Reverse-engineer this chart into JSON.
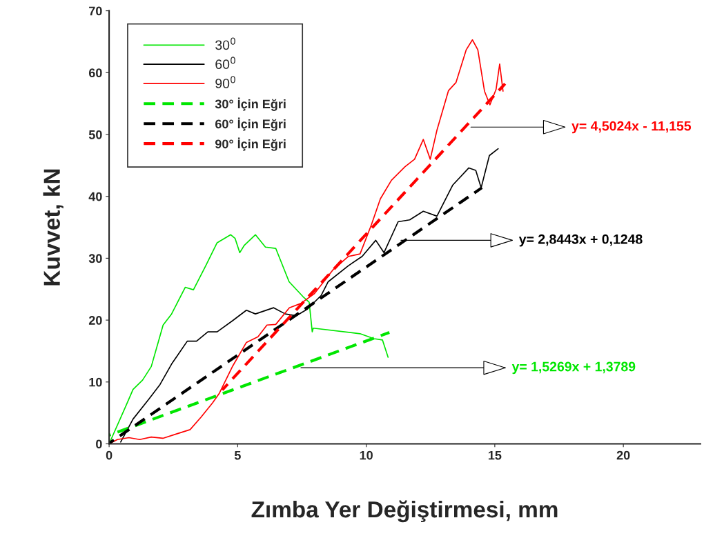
{
  "chart_data": {
    "type": "line",
    "xlabel": "Zımba Yer Değiştirmesi, mm",
    "ylabel": "Kuvvet, kN",
    "xlim": [
      0,
      23
    ],
    "ylim": [
      0,
      70
    ],
    "xticks": [
      0,
      5,
      10,
      15,
      20
    ],
    "yticks": [
      0,
      10,
      20,
      30,
      40,
      50,
      60,
      70
    ],
    "grid": false,
    "legend": "top left",
    "marker": "none",
    "series": [
      {
        "name": "30$^{0}$",
        "color": "#00e600",
        "line_style": "solid",
        "x": [
          0,
          0.66,
          0.93,
          1.3,
          1.64,
          2.1,
          2.43,
          2.96,
          3.28,
          3.76,
          4.2,
          4.73,
          4.9,
          5.08,
          5.26,
          5.69,
          6.08,
          6.48,
          7.0,
          7.54,
          7.78,
          7.9,
          7.94,
          9.76,
          10.3,
          10.63,
          10.85
        ],
        "values": [
          0,
          6.2,
          8.8,
          10.3,
          12.5,
          19.2,
          21,
          25.3,
          24.9,
          28.8,
          32.5,
          33.8,
          33.2,
          30.9,
          32.1,
          33.8,
          31.8,
          31.6,
          26.2,
          23.8,
          22.9,
          18.1,
          18.7,
          17.8,
          17.0,
          16.8,
          14.0
        ]
      },
      {
        "name": "60$^{0}$",
        "color": "#000000",
        "line_style": "solid",
        "x": [
          0.45,
          0.93,
          1.56,
          1.98,
          2.43,
          3.04,
          3.4,
          3.84,
          4.2,
          4.8,
          5.34,
          5.69,
          6.4,
          6.85,
          7.28,
          7.72,
          8.25,
          8.52,
          9.31,
          9.84,
          10.37,
          10.69,
          11.24,
          11.69,
          12.22,
          12.75,
          13.36,
          13.99,
          14.26,
          14.47,
          14.79,
          15.13
        ],
        "values": [
          0.3,
          4.0,
          7.3,
          9.6,
          12.9,
          16.6,
          16.6,
          18.1,
          18.1,
          19.9,
          21.6,
          21.0,
          22,
          21.0,
          20.7,
          21.8,
          24.0,
          26.2,
          28.8,
          30.3,
          32.9,
          30.9,
          35.9,
          36.2,
          37.6,
          36.8,
          41.8,
          44.6,
          44.2,
          41.4,
          46.6,
          47.7
        ]
      },
      {
        "name": "90$^{0}$",
        "color": "#ff0000",
        "line_style": "solid",
        "x": [
          0,
          0.32,
          0.77,
          1.19,
          1.64,
          2.09,
          2.62,
          3.15,
          3.57,
          4.02,
          4.29,
          4.81,
          5.34,
          5.79,
          6.14,
          6.48,
          7.01,
          7.46,
          7.99,
          8.7,
          9.31,
          9.76,
          10.2,
          10.55,
          10.98,
          11.51,
          11.88,
          12.22,
          12.49,
          12.75,
          13.2,
          13.49,
          13.89,
          14.13,
          14.34,
          14.6,
          14.81,
          15.05,
          15.19,
          15.32
        ],
        "values": [
          0,
          0.7,
          1.0,
          0.7,
          1.1,
          0.9,
          1.6,
          2.3,
          4.3,
          6.6,
          8.2,
          12.6,
          16.4,
          17.3,
          19.2,
          19.3,
          22,
          22.7,
          24.3,
          28.1,
          30.3,
          30.7,
          35.4,
          39.6,
          42.6,
          44.8,
          46.0,
          49.2,
          46.0,
          50.7,
          57.1,
          58.4,
          63.7,
          65.3,
          63.7,
          57.0,
          54.8,
          57.3,
          61.4,
          57.0
        ]
      },
      {
        "name": "30° İçin Eğri",
        "color": "#00e600",
        "line_style": "dashed",
        "x": [
          0,
          10.9
        ],
        "values": [
          1.4,
          18.0
        ]
      },
      {
        "name": "60° İçin Eğri",
        "color": "#000000",
        "line_style": "dashed",
        "x": [
          0,
          14.5
        ],
        "values": [
          0.1,
          41.4
        ]
      },
      {
        "name": "90° İçin Eğri",
        "color": "#ff0000",
        "line_style": "dashed",
        "x": [
          4.4,
          15.4
        ],
        "values": [
          8.7,
          58.2
        ]
      }
    ],
    "annotations": [
      {
        "text": "y= 4,5024x - 11,155",
        "x": 14.07,
        "y": 51.2
      },
      {
        "text": "y= 2,8443x + 0,1248",
        "x": 11.35,
        "y": 32.9
      },
      {
        "text": "y= 1,5269x + 1,3789",
        "x": 7.46,
        "y": 12.3
      }
    ]
  }
}
